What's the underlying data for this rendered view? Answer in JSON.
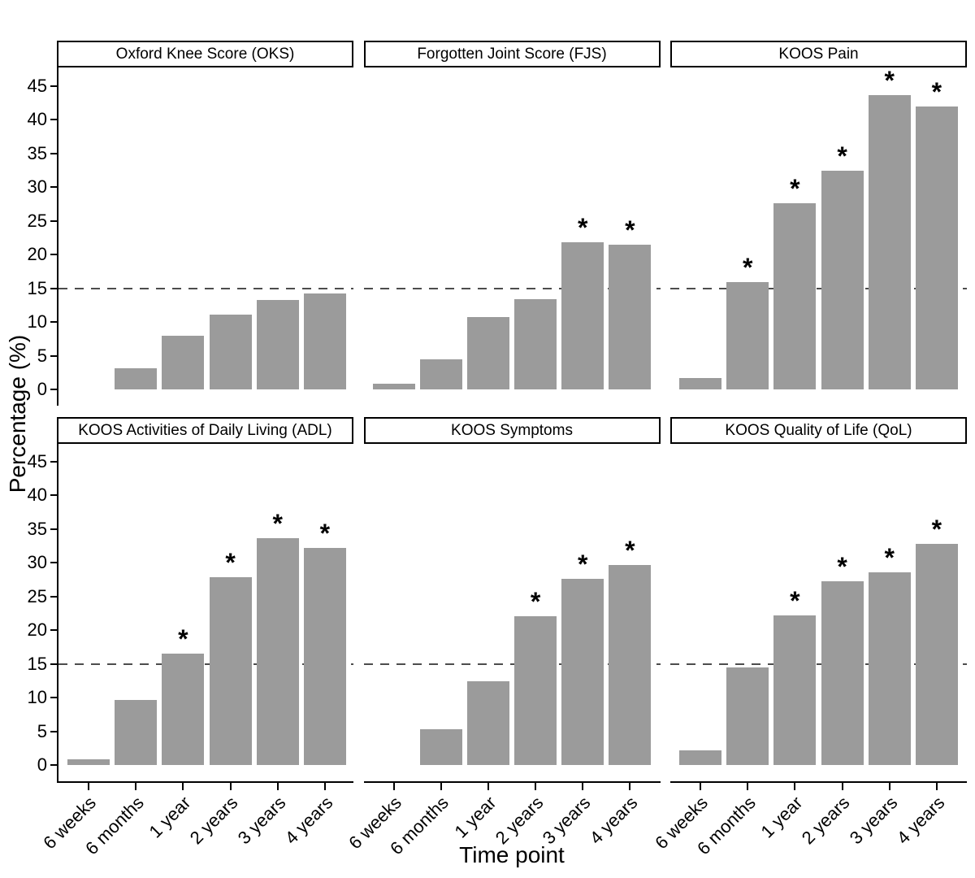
{
  "style": {
    "bar_color": "#9b9b9b",
    "reference_line_color": "#4d4d4d",
    "axis_color": "#000000",
    "strip_border_color": "#000000",
    "background_color": "#ffffff"
  },
  "chart_data": {
    "type": "bar",
    "layout": "faceted-2x3",
    "xlabel": "Time point",
    "ylabel": "Percentage (%)",
    "categories": [
      "6 weeks",
      "6 months",
      "1 year",
      "2 years",
      "3 years",
      "4 years"
    ],
    "yticks": [
      0,
      5,
      10,
      15,
      20,
      25,
      30,
      35,
      40,
      45
    ],
    "ylim": [
      0,
      47.5
    ],
    "grid": "off",
    "legend": "none",
    "reference_line_y": 15,
    "reference_line_style": "dashed",
    "significance_marker": "*",
    "panels": [
      {
        "title": "Oxford Knee Score (OKS)",
        "values": [
          0,
          3.1,
          8.0,
          11.1,
          13.2,
          14.2
        ],
        "significant": [
          false,
          false,
          false,
          false,
          false,
          false
        ]
      },
      {
        "title": "Forgotten Joint Score (FJS)",
        "values": [
          0.9,
          4.4,
          10.7,
          13.4,
          21.8,
          21.4
        ],
        "significant": [
          false,
          false,
          false,
          false,
          true,
          true
        ]
      },
      {
        "title": "KOOS Pain",
        "values": [
          1.7,
          15.9,
          27.6,
          32.4,
          43.6,
          41.9
        ],
        "significant": [
          false,
          true,
          true,
          true,
          true,
          true
        ]
      },
      {
        "title": "KOOS Activities of Daily Living (ADL)",
        "values": [
          0.9,
          9.6,
          16.5,
          27.8,
          33.6,
          32.2
        ],
        "significant": [
          false,
          false,
          true,
          true,
          true,
          true
        ]
      },
      {
        "title": "KOOS Symptoms",
        "values": [
          0,
          5.3,
          12.4,
          22.1,
          27.6,
          29.6
        ],
        "significant": [
          false,
          false,
          false,
          true,
          true,
          true
        ]
      },
      {
        "title": "KOOS Quality of Life (QoL)",
        "values": [
          2.2,
          14.5,
          22.2,
          27.2,
          28.6,
          32.8
        ],
        "significant": [
          false,
          false,
          true,
          true,
          true,
          true
        ]
      }
    ]
  }
}
